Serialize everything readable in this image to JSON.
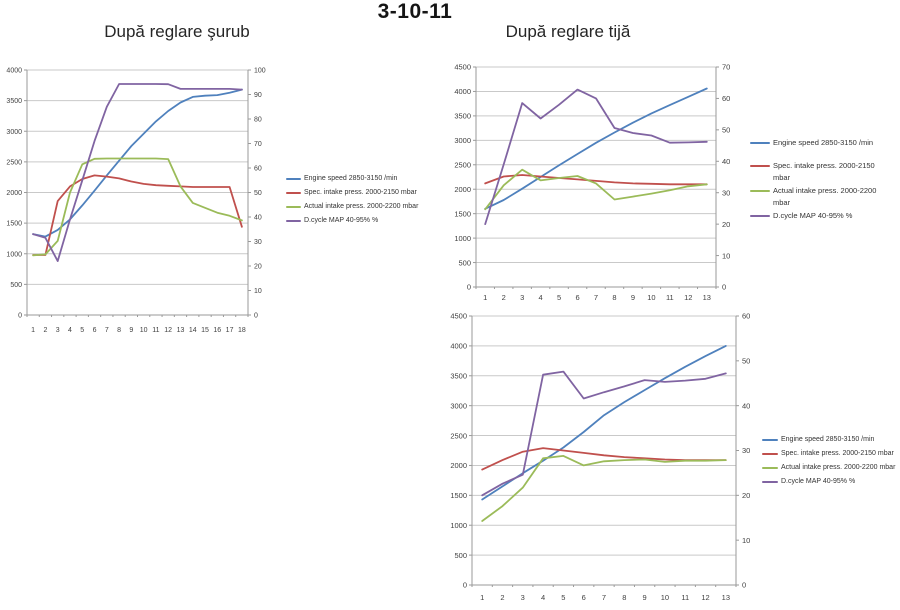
{
  "page": {
    "title": "3-10-11"
  },
  "chart_data": [
    {
      "type": "line",
      "title": "După reglare şurub",
      "x_labels": [
        "1",
        "2",
        "3",
        "4",
        "5",
        "6",
        "7",
        "8",
        "9",
        "10",
        "11",
        "12",
        "13",
        "14",
        "15",
        "16",
        "17",
        "18"
      ],
      "left_axis": {
        "min": 0,
        "max": 4000,
        "step": 500
      },
      "right_axis": {
        "min": 0,
        "max": 100,
        "step": 10
      },
      "grid": true,
      "legend_position": "right",
      "series": [
        {
          "name": "Engine speed 2850-3150  /min",
          "color": "#4F81BD",
          "axis": "left",
          "values": [
            1320,
            1280,
            1390,
            1560,
            1790,
            2030,
            2280,
            2520,
            2760,
            2960,
            3160,
            3330,
            3470,
            3560,
            3580,
            3590,
            3630,
            3680
          ]
        },
        {
          "name": "Spec. intake press. 2000-2150  mbar",
          "color": "#C0504D",
          "axis": "left",
          "values": [
            980,
            980,
            1860,
            2100,
            2220,
            2280,
            2260,
            2230,
            2180,
            2140,
            2120,
            2110,
            2100,
            2090,
            2090,
            2090,
            2090,
            1440
          ]
        },
        {
          "name": "Actual intake press. 2000-2200  mbar",
          "color": "#9BBB59",
          "axis": "left",
          "values": [
            975,
            990,
            1210,
            2000,
            2460,
            2550,
            2555,
            2555,
            2555,
            2555,
            2555,
            2545,
            2100,
            1830,
            1750,
            1670,
            1620,
            1545
          ]
        },
        {
          "name": "D.cycle MAP 40-95%  %",
          "color": "#8064A2",
          "axis": "right",
          "values": [
            33,
            31.5,
            22,
            39,
            55,
            71,
            85,
            94.3,
            94.3,
            94.3,
            94.3,
            94.2,
            92.3,
            92.3,
            92.3,
            92.3,
            92.3,
            92
          ]
        }
      ]
    },
    {
      "type": "line",
      "title": "După reglare tijă",
      "x_labels": [
        "1",
        "2",
        "3",
        "4",
        "5",
        "6",
        "7",
        "8",
        "9",
        "10",
        "11",
        "12",
        "13"
      ],
      "left_axis": {
        "min": 0,
        "max": 4500,
        "step": 500
      },
      "right_axis": {
        "min": 0,
        "max": 70,
        "step": 10
      },
      "grid": true,
      "legend_position": "right",
      "series": [
        {
          "name": "Engine speed 2850-3150  /min",
          "color": "#4F81BD",
          "axis": "left",
          "values": [
            1600,
            1780,
            2010,
            2250,
            2490,
            2720,
            2950,
            3160,
            3360,
            3550,
            3720,
            3890,
            4060
          ]
        },
        {
          "name": "Spec. intake press. 2000-2150 mbar",
          "color": "#C0504D",
          "axis": "left",
          "values": [
            2120,
            2260,
            2290,
            2260,
            2230,
            2200,
            2170,
            2140,
            2120,
            2110,
            2100,
            2100,
            2100
          ]
        },
        {
          "name": "Actual intake press. 2000-2200 mbar",
          "color": "#9BBB59",
          "axis": "left",
          "values": [
            1590,
            2080,
            2400,
            2180,
            2230,
            2270,
            2120,
            1790,
            1850,
            1910,
            1980,
            2060,
            2100
          ]
        },
        {
          "name": "D.cycle MAP 40-95%  %",
          "color": "#8064A2",
          "axis": "right",
          "values": [
            20,
            39,
            58.5,
            53.6,
            58,
            62.8,
            60,
            50.6,
            49,
            48.2,
            45.9,
            46,
            46.2
          ]
        }
      ]
    },
    {
      "type": "line",
      "title": "",
      "x_labels": [
        "1",
        "2",
        "3",
        "4",
        "5",
        "6",
        "7",
        "8",
        "9",
        "10",
        "11",
        "12",
        "13"
      ],
      "left_axis": {
        "min": 0,
        "max": 4500,
        "step": 500
      },
      "right_axis": {
        "min": 0,
        "max": 60,
        "step": 10
      },
      "grid": true,
      "legend_position": "right",
      "series": [
        {
          "name": "Engine speed 2850-3150  /min",
          "color": "#4F81BD",
          "axis": "left",
          "values": [
            1430,
            1650,
            1870,
            2080,
            2300,
            2560,
            2840,
            3060,
            3260,
            3460,
            3650,
            3830,
            4000
          ]
        },
        {
          "name": "Spec. intake press. 2000-2150  mbar",
          "color": "#C0504D",
          "axis": "left",
          "values": [
            1930,
            2090,
            2230,
            2290,
            2250,
            2210,
            2170,
            2140,
            2120,
            2100,
            2090,
            2090,
            2090
          ]
        },
        {
          "name": "Actual intake press. 2000-2200  mbar",
          "color": "#9BBB59",
          "axis": "left",
          "values": [
            1070,
            1320,
            1630,
            2120,
            2160,
            2000,
            2070,
            2090,
            2100,
            2060,
            2080,
            2080,
            2090
          ]
        },
        {
          "name": "D.cycle MAP 40-95%  %",
          "color": "#8064A2",
          "axis": "right",
          "values": [
            20,
            22.6,
            24.6,
            46.9,
            47.6,
            41.6,
            43,
            44.3,
            45.7,
            45.3,
            45.6,
            46,
            47.2
          ]
        }
      ]
    }
  ]
}
